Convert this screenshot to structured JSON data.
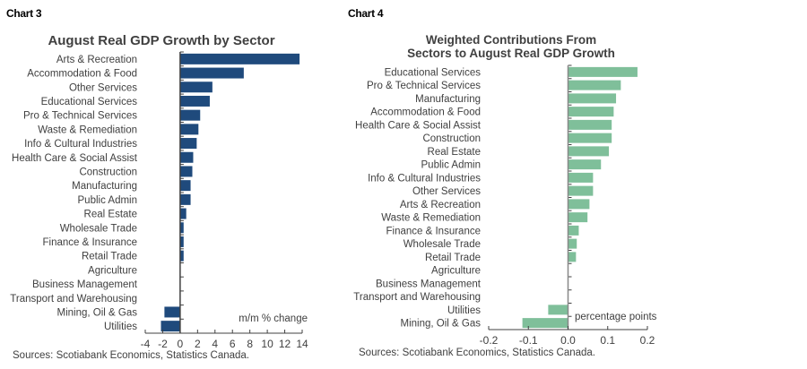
{
  "chart_data": [
    {
      "id": "chart3",
      "type": "bar",
      "orientation": "horizontal",
      "label": "Chart 3",
      "title": "August Real GDP Growth by Sector",
      "xlabel": "m/m % change",
      "source": "Sources: Scotiabank Economics, Statistics Canada.",
      "color": "#1F4A7C",
      "xlim": [
        -4,
        14
      ],
      "xticks": [
        -4,
        -2,
        0,
        2,
        4,
        6,
        8,
        10,
        12,
        14
      ],
      "categories": [
        "Arts & Recreation",
        "Accommodation & Food",
        "Other Services",
        "Educational Services",
        "Pro & Technical Services",
        "Waste & Remediation",
        "Info & Cultural Industries",
        "Health Care & Social Assist",
        "Construction",
        "Manufacturing",
        "Public Admin",
        "Real Estate",
        "Wholesale Trade",
        "Finance & Insurance",
        "Retail Trade",
        "Agriculture",
        "Business Management",
        "Transport and Warehousing",
        "Mining, Oil & Gas",
        "Utilities"
      ],
      "values": [
        13.7,
        7.3,
        3.7,
        3.4,
        2.3,
        2.1,
        1.9,
        1.5,
        1.4,
        1.2,
        1.2,
        0.7,
        0.4,
        0.4,
        0.4,
        0.0,
        0.0,
        0.0,
        -1.8,
        -2.2
      ]
    },
    {
      "id": "chart4",
      "type": "bar",
      "orientation": "horizontal",
      "label": "Chart 4",
      "title": "Weighted Contributions From Sectors to August Real GDP Growth",
      "title_lines": [
        "Weighted Contributions From",
        "Sectors to August Real GDP Growth"
      ],
      "xlabel": "percentage points",
      "source": "Sources: Scotiabank Economics, Statistics Canada.",
      "color": "#7FBF9A",
      "xlim": [
        -0.2,
        0.2
      ],
      "xticks": [
        -0.2,
        -0.1,
        0.0,
        0.1,
        0.2
      ],
      "xtick_labels": [
        "-0.2",
        "-0.1",
        "0.0",
        "0.1",
        "0.2"
      ],
      "categories": [
        "Educational Services",
        "Pro & Technical Services",
        "Manufacturing",
        "Accommodation & Food",
        "Health Care & Social Assist",
        "Construction",
        "Real Estate",
        "Public Admin",
        "Info & Cultural Industries",
        "Other Services",
        "Arts & Recreation",
        "Waste & Remediation",
        "Finance & Insurance",
        "Wholesale Trade",
        "Retail Trade",
        "Agriculture",
        "Business Management",
        "Transport and Warehousing",
        "Utilities",
        "Mining, Oil & Gas"
      ],
      "values": [
        0.175,
        0.133,
        0.121,
        0.115,
        0.11,
        0.11,
        0.103,
        0.083,
        0.063,
        0.063,
        0.054,
        0.049,
        0.027,
        0.022,
        0.02,
        0.0,
        0.0,
        0.0,
        -0.05,
        -0.115
      ]
    }
  ]
}
